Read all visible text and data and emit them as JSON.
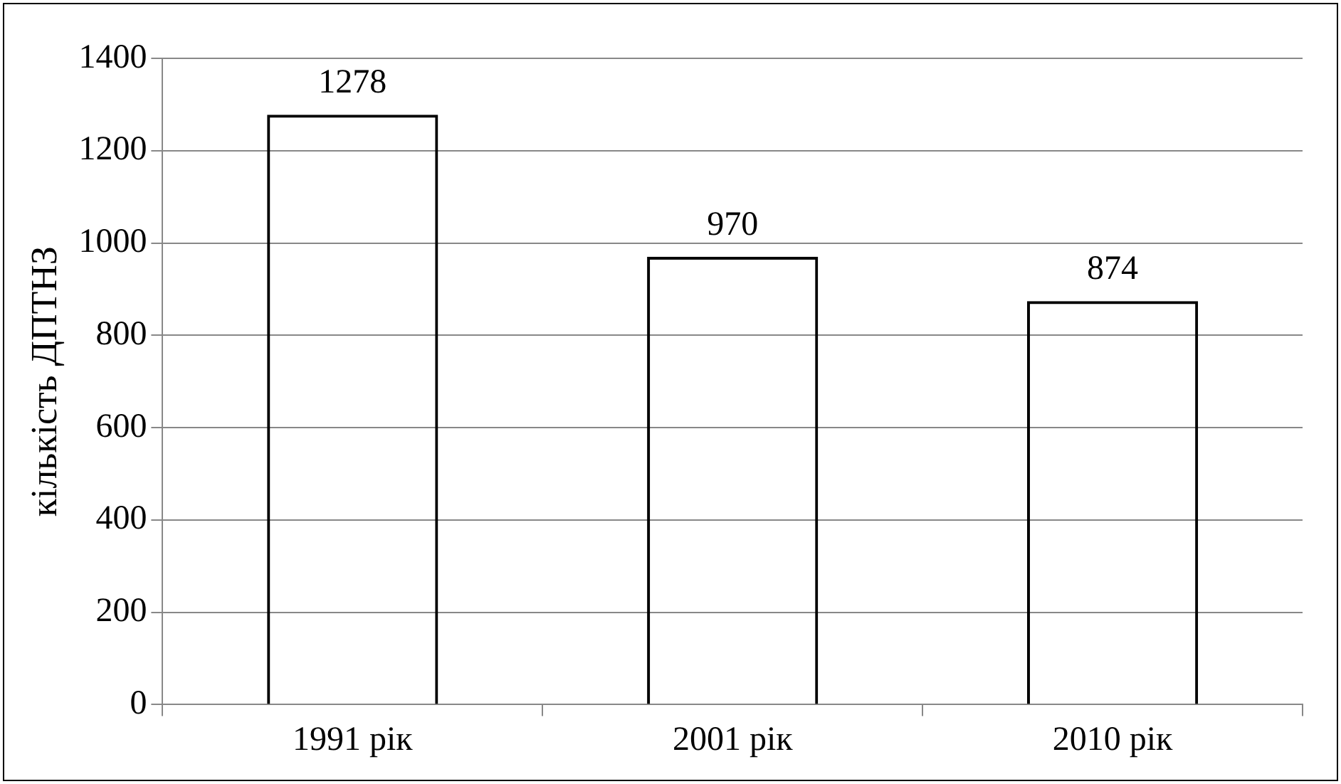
{
  "chart_data": {
    "type": "bar",
    "ylabel": "кількість ДПТНЗ",
    "categories": [
      "1991 рік",
      "2001 рік",
      "2010 рік"
    ],
    "values": [
      1278,
      970,
      874
    ],
    "color": "#000000",
    "ylim": [
      0,
      1400
    ],
    "yticks": [
      0,
      200,
      400,
      600,
      800,
      1000,
      1200,
      1400
    ],
    "grid": "y",
    "data_labels": true,
    "legend": false
  }
}
